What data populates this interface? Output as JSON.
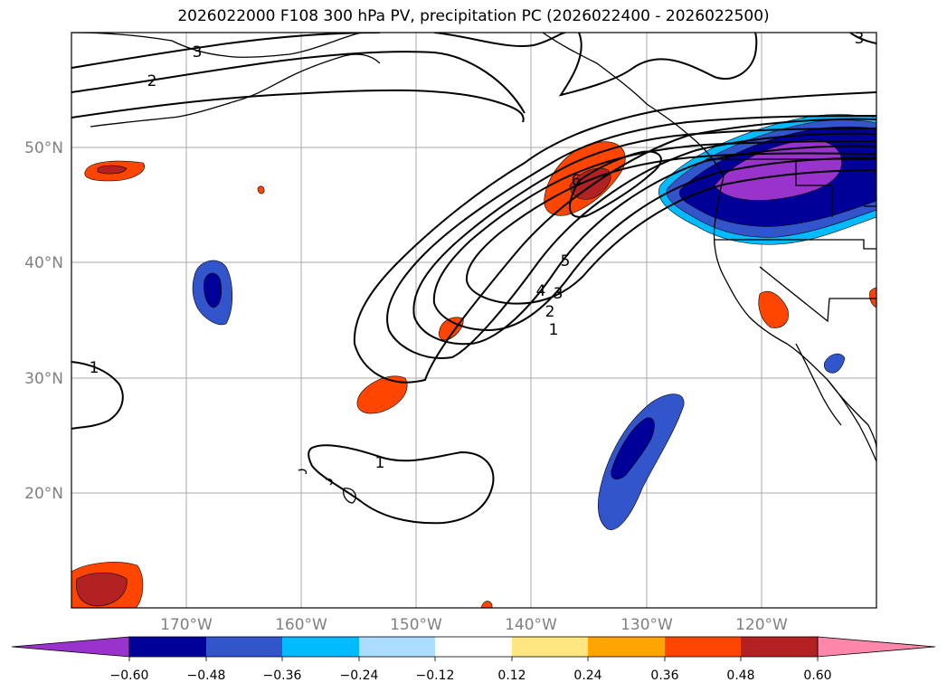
{
  "title": "2026022000 F108 300 hPa PV, precipitation PC (2026022400 - 2026022500)",
  "map": {
    "lon_range": [
      -180,
      -110
    ],
    "lat_range": [
      10,
      60
    ],
    "lat_ticks": [
      "20°N",
      "30°N",
      "40°N",
      "50°N"
    ],
    "lon_ticks": [
      "170°W",
      "160°W",
      "150°W",
      "140°W",
      "130°W",
      "120°W"
    ],
    "contour_labels": [
      "3",
      "2",
      "6",
      "5",
      "4",
      "3",
      "2",
      "1",
      "1",
      "1",
      "3"
    ]
  },
  "colorbar": {
    "colors": [
      "#9933cc",
      "#000099",
      "#3355cc",
      "#00bbff",
      "#aaddff",
      "#ffffff",
      "#ffe680",
      "#ffa500",
      "#ff4500",
      "#b22222",
      "#ff88aa"
    ],
    "tick_labels": [
      "−0.60",
      "−0.48",
      "−0.36",
      "−0.24",
      "−0.12",
      "0.12",
      "0.24",
      "0.36",
      "0.48",
      "0.60"
    ]
  }
}
